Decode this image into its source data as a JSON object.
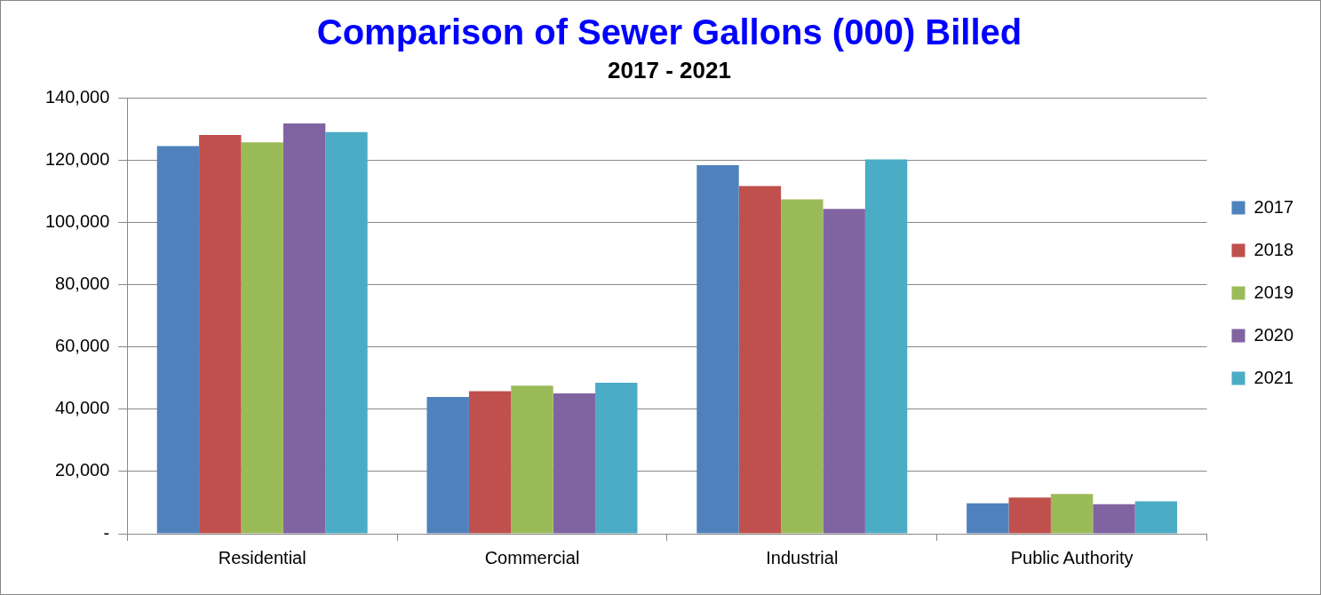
{
  "chart_data": {
    "type": "bar",
    "title": "Comparison of Sewer Gallons (000) Billed",
    "subtitle": "2017 - 2021",
    "categories": [
      "Residential",
      "Commercial",
      "Industrial",
      "Public Authority"
    ],
    "series": [
      {
        "name": "2017",
        "color": "#4f81bd",
        "values": [
          124500,
          43900,
          118400,
          9800
        ]
      },
      {
        "name": "2018",
        "color": "#c0504d",
        "values": [
          128100,
          45800,
          111700,
          11600
        ]
      },
      {
        "name": "2019",
        "color": "#9bbb59",
        "values": [
          125700,
          47600,
          107400,
          12800
        ]
      },
      {
        "name": "2020",
        "color": "#8064a2",
        "values": [
          131800,
          45100,
          104300,
          9500
        ]
      },
      {
        "name": "2021",
        "color": "#4bacc6",
        "values": [
          129000,
          48500,
          120200,
          10400
        ]
      }
    ],
    "ylim": [
      0,
      140000
    ],
    "yticks": [
      {
        "value": 0,
        "label": "-"
      },
      {
        "value": 20000,
        "label": "20,000"
      },
      {
        "value": 40000,
        "label": "40,000"
      },
      {
        "value": 60000,
        "label": "60,000"
      },
      {
        "value": 80000,
        "label": "80,000"
      },
      {
        "value": 100000,
        "label": "100,000"
      },
      {
        "value": 120000,
        "label": "120,000"
      },
      {
        "value": 140000,
        "label": "140,000"
      }
    ],
    "grid": "y",
    "legend": "right"
  }
}
